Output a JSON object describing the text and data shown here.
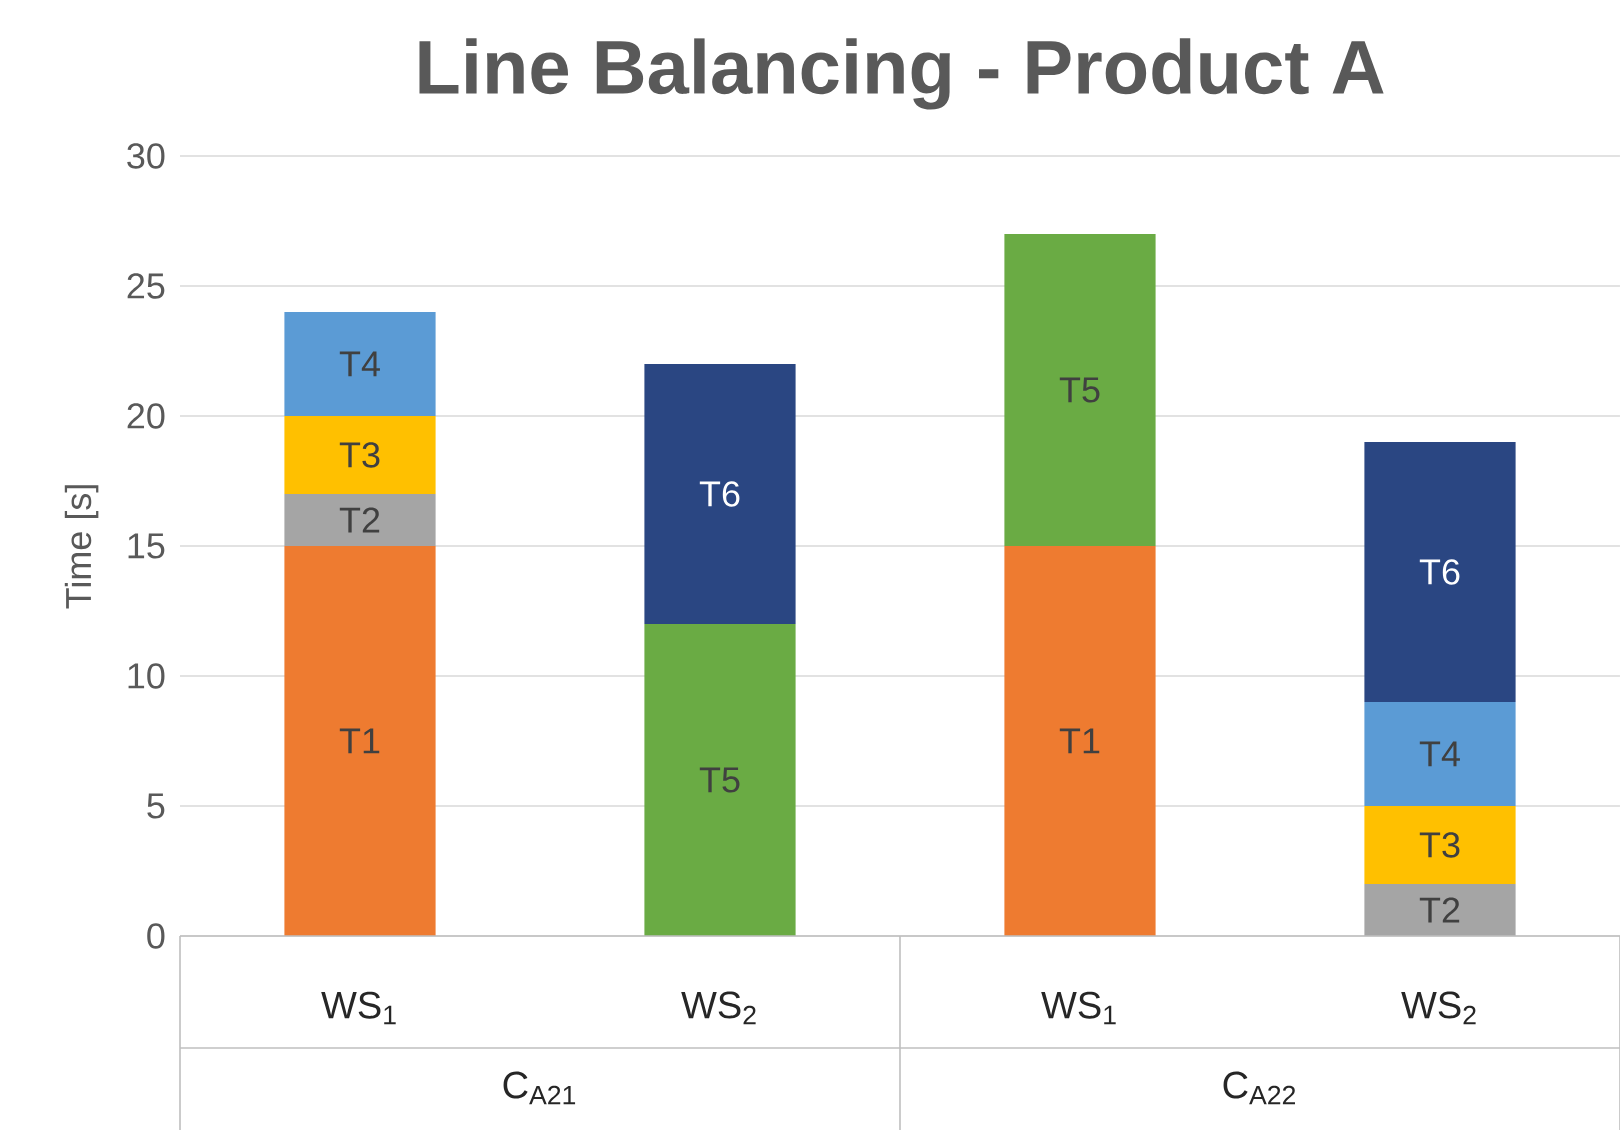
{
  "chart_data": {
    "type": "bar",
    "title": "Line Balancing - Product A",
    "ylabel": "Time [s]",
    "stacked": true,
    "categories": [
      "WS$_{1}$",
      "WS$_{2}$",
      "WS$_{1}$",
      "WS$_{2}$"
    ],
    "annotations": [
      "C$_{A21}$",
      "C$_{A22}$"
    ],
    "series": [
      {
        "name": "T1",
        "color": "#ee7b30",
        "values": [
          15,
          null,
          15,
          null
        ]
      },
      {
        "name": "T2",
        "color": "#a5a5a5",
        "values": [
          2,
          null,
          null,
          2
        ]
      },
      {
        "name": "T3",
        "color": "#ffc000",
        "values": [
          3,
          null,
          null,
          3
        ]
      },
      {
        "name": "T4",
        "color": "#5b9bd5",
        "values": [
          4,
          null,
          null,
          4
        ]
      },
      {
        "name": "T5",
        "color": "#6aab44",
        "values": [
          null,
          12,
          12,
          null
        ]
      },
      {
        "name": "T6",
        "color": "#2a4682",
        "values": [
          null,
          10,
          null,
          10
        ]
      }
    ],
    "ylim": [
      0,
      30
    ],
    "yticks": [
      0,
      5,
      10,
      15,
      20,
      25,
      30
    ],
    "grid": "y"
  }
}
